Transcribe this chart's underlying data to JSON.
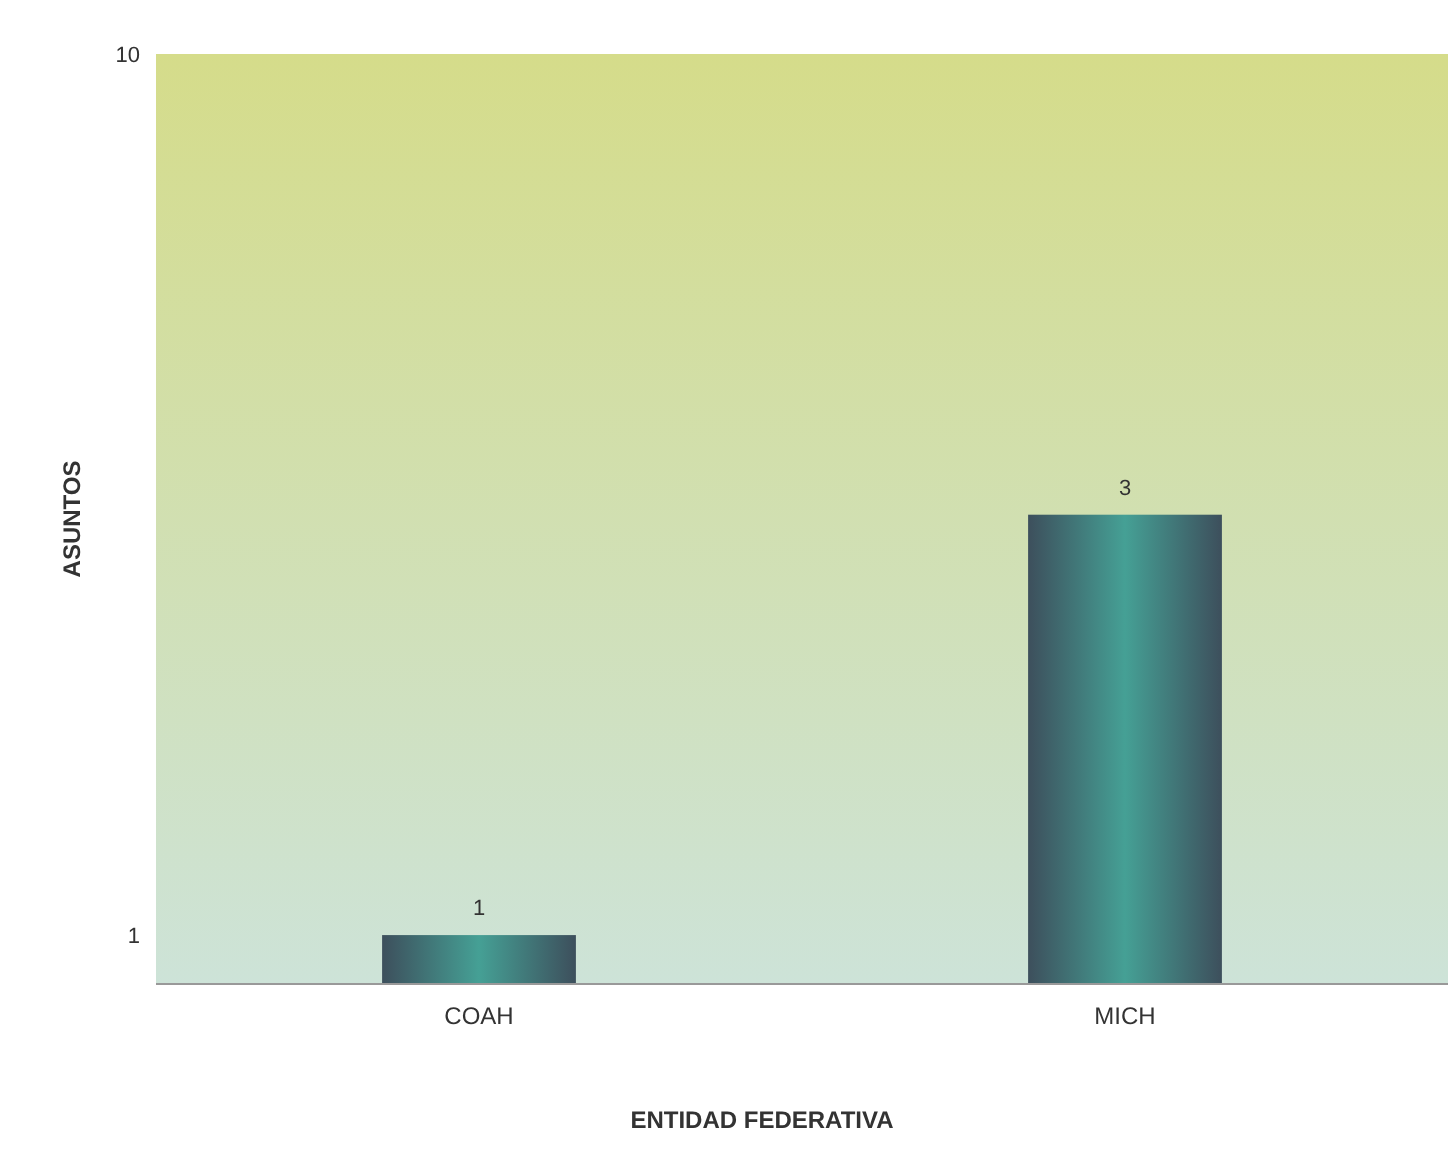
{
  "chart_data": {
    "type": "bar",
    "xlabel": "ENTIDAD FEDERATIVA",
    "ylabel": "ASUNTOS",
    "categories": [
      "COAH",
      "MICH"
    ],
    "values": [
      1,
      3
    ],
    "color": "#45a095",
    "log": true,
    "ylim": [
      0.88,
      10
    ],
    "yticks": [
      1,
      10
    ],
    "data_labels": true
  }
}
